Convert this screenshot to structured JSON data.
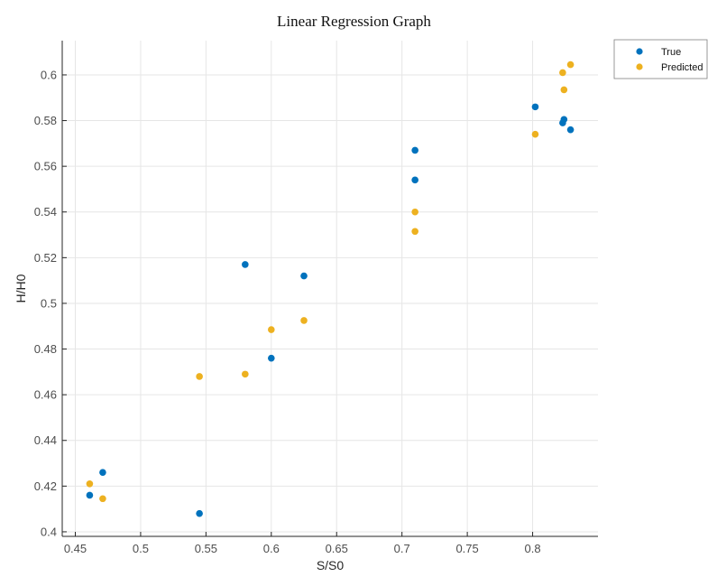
{
  "chart_data": {
    "type": "scatter",
    "title": "Linear Regression Graph",
    "xlabel": "S/S0",
    "ylabel": "H/H0",
    "xlim": [
      0.44,
      0.85
    ],
    "ylim": [
      0.398,
      0.615
    ],
    "xticks": [
      0.45,
      0.5,
      0.55,
      0.6,
      0.65,
      0.7,
      0.75,
      0.8
    ],
    "xtick_labels": [
      "0.45",
      "0.5",
      "0.55",
      "0.6",
      "0.65",
      "0.7",
      "0.75",
      "0.8"
    ],
    "yticks": [
      0.4,
      0.42,
      0.44,
      0.46,
      0.48,
      0.5,
      0.52,
      0.54,
      0.56,
      0.58,
      0.6
    ],
    "ytick_labels": [
      "0.4",
      "0.42",
      "0.44",
      "0.46",
      "0.48",
      "0.5",
      "0.52",
      "0.54",
      "0.56",
      "0.58",
      "0.6"
    ],
    "grid": true,
    "legend_position": "top-right, outside plot",
    "series": [
      {
        "name": "True",
        "color": "#0072BD",
        "x": [
          0.461,
          0.471,
          0.545,
          0.58,
          0.6,
          0.625,
          0.71,
          0.71,
          0.802,
          0.823,
          0.824,
          0.829
        ],
        "y": [
          0.416,
          0.426,
          0.408,
          0.517,
          0.476,
          0.512,
          0.554,
          0.567,
          0.586,
          0.579,
          0.5805,
          0.576
        ]
      },
      {
        "name": "Predicted",
        "color": "#EDB120",
        "x": [
          0.461,
          0.471,
          0.545,
          0.58,
          0.6,
          0.625,
          0.71,
          0.71,
          0.802,
          0.823,
          0.824,
          0.829
        ],
        "y": [
          0.421,
          0.4145,
          0.468,
          0.469,
          0.4885,
          0.4925,
          0.5315,
          0.54,
          0.574,
          0.601,
          0.5935,
          0.6045
        ]
      }
    ]
  }
}
